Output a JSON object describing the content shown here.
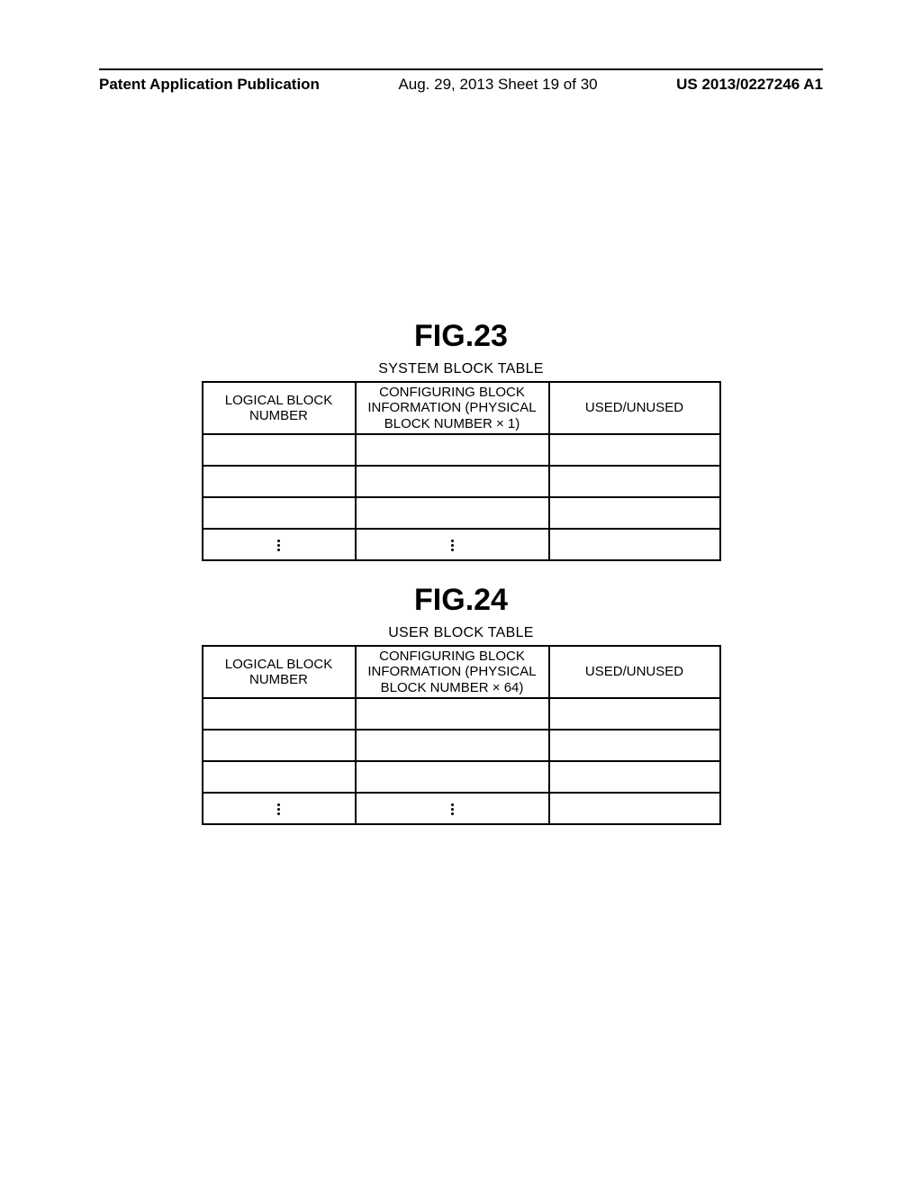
{
  "header": {
    "left": "Patent Application Publication",
    "center": "Aug. 29, 2013  Sheet 19 of 30",
    "right": "US 2013/0227246 A1"
  },
  "figures": [
    {
      "label": "FIG.23",
      "title": "SYSTEM BLOCK TABLE",
      "columns": [
        "LOGICAL BLOCK NUMBER",
        "CONFIGURING BLOCK INFORMATION (PHYSICAL BLOCK NUMBER × 1)",
        "USED/UNUSED"
      ]
    },
    {
      "label": "FIG.24",
      "title": "USER BLOCK TABLE",
      "columns": [
        "LOGICAL BLOCK NUMBER",
        "CONFIGURING BLOCK INFORMATION (PHYSICAL BLOCK NUMBER × 64)",
        "USED/UNUSED"
      ]
    }
  ]
}
